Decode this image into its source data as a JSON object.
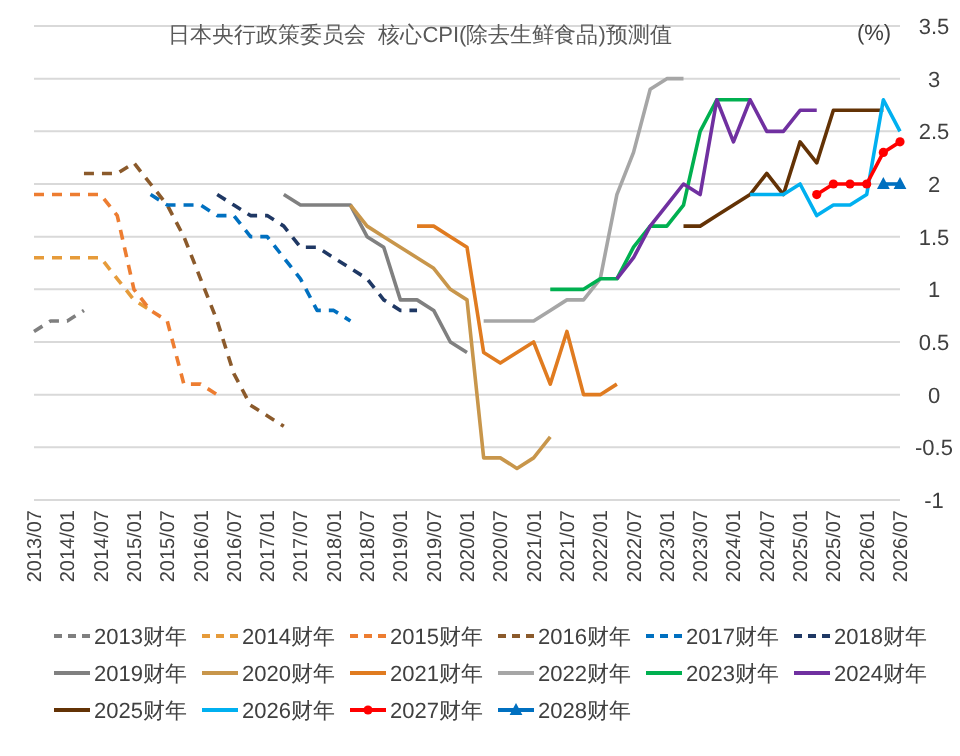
{
  "chart_data": {
    "type": "line",
    "title": "日本央行政策委员会  核心CPI(除去生鲜食品)预测值",
    "ylabel": "(%)",
    "xlim": [
      "2013-07",
      "2026-07"
    ],
    "xticks": [
      {
        "value": "2013-07",
        "label": "2013/07"
      },
      {
        "value": "2014-01",
        "label": "2014/01"
      },
      {
        "value": "2014-07",
        "label": "2014/07"
      },
      {
        "value": "2015-01",
        "label": "2015/01"
      },
      {
        "value": "2015-07",
        "label": "2015/07"
      },
      {
        "value": "2016-01",
        "label": "2016/01"
      },
      {
        "value": "2016-07",
        "label": "2016/07"
      },
      {
        "value": "2017-01",
        "label": "2017/01"
      },
      {
        "value": "2017-07",
        "label": "2017/07"
      },
      {
        "value": "2018-01",
        "label": "2018/01"
      },
      {
        "value": "2018-07",
        "label": "2018/07"
      },
      {
        "value": "2019-01",
        "label": "2019/01"
      },
      {
        "value": "2019-07",
        "label": "2019/07"
      },
      {
        "value": "2020-01",
        "label": "2020/01"
      },
      {
        "value": "2020-07",
        "label": "2020/07"
      },
      {
        "value": "2021-01",
        "label": "2021/01"
      },
      {
        "value": "2021-07",
        "label": "2021/07"
      },
      {
        "value": "2022-01",
        "label": "2022/01"
      },
      {
        "value": "2022-07",
        "label": "2022/07"
      },
      {
        "value": "2023-01",
        "label": "2023/01"
      },
      {
        "value": "2023-07",
        "label": "2023/07"
      },
      {
        "value": "2024-01",
        "label": "2024/01"
      },
      {
        "value": "2024-07",
        "label": "2024/07"
      },
      {
        "value": "2025-01",
        "label": "2025/01"
      },
      {
        "value": "2025-07",
        "label": "2025/07"
      },
      {
        "value": "2026-01",
        "label": "2026/01"
      },
      {
        "value": "2026-07",
        "label": "2026/07"
      }
    ],
    "ylim": [
      -1,
      3.5
    ],
    "yticks": [
      -1,
      -0.5,
      0,
      0.5,
      1,
      1.5,
      2,
      2.5,
      3,
      3.5
    ],
    "grid": "y",
    "legend": "bottom",
    "marker": "none",
    "line_style": "solid",
    "series": [
      {
        "name": "2013财年",
        "color": "#7f7f7f",
        "line_style": "dashed",
        "x": [
          "2013-07",
          "2013-10",
          "2014-01",
          "2014-04"
        ],
        "values": [
          0.6,
          0.7,
          0.7,
          0.8
        ]
      },
      {
        "name": "2014财年",
        "color": "#e69b3a",
        "line_style": "dashed",
        "x": [
          "2013-07",
          "2013-10",
          "2014-01",
          "2014-04",
          "2014-07",
          "2014-10",
          "2015-01",
          "2015-04"
        ],
        "values": [
          1.3,
          1.3,
          1.3,
          1.3,
          1.3,
          1.1,
          0.9,
          0.8
        ]
      },
      {
        "name": "2015财年",
        "color": "#ed7d31",
        "line_style": "dashed",
        "x": [
          "2013-07",
          "2013-10",
          "2014-01",
          "2014-04",
          "2014-07",
          "2014-10",
          "2015-01",
          "2015-04",
          "2015-07",
          "2015-10",
          "2016-01",
          "2016-04"
        ],
        "values": [
          1.9,
          1.9,
          1.9,
          1.9,
          1.9,
          1.7,
          1.0,
          0.8,
          0.7,
          0.1,
          0.1,
          0.0
        ]
      },
      {
        "name": "2016财年",
        "color": "#8b5a2b",
        "line_style": "dashed",
        "x": [
          "2014-04",
          "2014-07",
          "2014-10",
          "2015-01",
          "2015-04",
          "2015-07",
          "2015-10",
          "2016-01",
          "2016-04",
          "2016-07",
          "2016-10",
          "2017-01",
          "2017-04"
        ],
        "values": [
          2.1,
          2.1,
          2.1,
          2.2,
          2.0,
          1.8,
          1.5,
          1.1,
          0.7,
          0.2,
          -0.1,
          -0.2,
          -0.3
        ]
      },
      {
        "name": "2017财年",
        "color": "#0070c0",
        "line_style": "dashed",
        "x": [
          "2015-04",
          "2015-07",
          "2015-10",
          "2016-01",
          "2016-04",
          "2016-07",
          "2016-10",
          "2017-01",
          "2017-04",
          "2017-07",
          "2017-10",
          "2018-01",
          "2018-04"
        ],
        "values": [
          1.9,
          1.8,
          1.8,
          1.8,
          1.7,
          1.7,
          1.5,
          1.5,
          1.3,
          1.1,
          0.8,
          0.8,
          0.7
        ]
      },
      {
        "name": "2018财年",
        "color": "#1f3864",
        "line_style": "dashed",
        "x": [
          "2016-04",
          "2016-07",
          "2016-10",
          "2017-01",
          "2017-04",
          "2017-07",
          "2017-10",
          "2018-01",
          "2018-04",
          "2018-07",
          "2018-10",
          "2019-01",
          "2019-04"
        ],
        "values": [
          1.9,
          1.8,
          1.7,
          1.7,
          1.6,
          1.4,
          1.4,
          1.3,
          1.2,
          1.1,
          0.9,
          0.8,
          0.8
        ]
      },
      {
        "name": "2019财年",
        "color": "#808080",
        "x": [
          "2017-04",
          "2017-07",
          "2017-10",
          "2018-01",
          "2018-04",
          "2018-07",
          "2018-10",
          "2019-01",
          "2019-04",
          "2019-07",
          "2019-10",
          "2020-01"
        ],
        "values": [
          1.9,
          1.8,
          1.8,
          1.8,
          1.8,
          1.5,
          1.4,
          0.9,
          0.9,
          0.8,
          0.5,
          0.4
        ]
      },
      {
        "name": "2020财年",
        "color": "#c8964b",
        "x": [
          "2018-04",
          "2018-07",
          "2018-10",
          "2019-01",
          "2019-04",
          "2019-07",
          "2019-10",
          "2020-01",
          "2020-04",
          "2020-07",
          "2020-10",
          "2021-01",
          "2021-04"
        ],
        "values": [
          1.8,
          1.6,
          1.5,
          1.4,
          1.3,
          1.2,
          1.0,
          0.9,
          -0.6,
          -0.6,
          -0.7,
          -0.6,
          -0.4
        ]
      },
      {
        "name": "2021财年",
        "color": "#e07b20",
        "x": [
          "2019-04",
          "2019-07",
          "2019-10",
          "2020-01",
          "2020-04",
          "2020-07",
          "2020-10",
          "2021-01",
          "2021-04",
          "2021-07",
          "2021-10",
          "2022-01",
          "2022-04"
        ],
        "values": [
          1.6,
          1.6,
          1.5,
          1.4,
          0.4,
          0.3,
          0.4,
          0.5,
          0.1,
          0.6,
          0.0,
          0.0,
          0.1
        ]
      },
      {
        "name": "2022财年",
        "color": "#a6a6a6",
        "x": [
          "2020-04",
          "2020-07",
          "2020-10",
          "2021-01",
          "2021-04",
          "2021-07",
          "2021-10",
          "2022-01",
          "2022-04",
          "2022-07",
          "2022-10",
          "2023-01",
          "2023-04"
        ],
        "values": [
          0.7,
          0.7,
          0.7,
          0.7,
          0.8,
          0.9,
          0.9,
          1.1,
          1.9,
          2.3,
          2.9,
          3.0,
          3.0
        ]
      },
      {
        "name": "2023财年",
        "color": "#00b050",
        "x": [
          "2021-04",
          "2021-07",
          "2021-10",
          "2022-01",
          "2022-04",
          "2022-07",
          "2022-10",
          "2023-01",
          "2023-04",
          "2023-07",
          "2023-10",
          "2024-01",
          "2024-04"
        ],
        "values": [
          1.0,
          1.0,
          1.0,
          1.1,
          1.1,
          1.4,
          1.6,
          1.6,
          1.8,
          2.5,
          2.8,
          2.8,
          2.8
        ]
      },
      {
        "name": "2024财年",
        "color": "#7030a0",
        "x": [
          "2022-04",
          "2022-07",
          "2022-10",
          "2023-01",
          "2023-04",
          "2023-07",
          "2023-10",
          "2024-01",
          "2024-04",
          "2024-07",
          "2024-10",
          "2025-01",
          "2025-04"
        ],
        "values": [
          1.1,
          1.3,
          1.6,
          1.8,
          2.0,
          1.9,
          2.8,
          2.4,
          2.8,
          2.5,
          2.5,
          2.7,
          2.7
        ]
      },
      {
        "name": "2025财年",
        "color": "#633205",
        "x": [
          "2023-04",
          "2023-07",
          "2023-10",
          "2024-01",
          "2024-04",
          "2024-07",
          "2024-10",
          "2025-01",
          "2025-04",
          "2025-07",
          "2025-10",
          "2026-01",
          "2026-04"
        ],
        "values": [
          1.6,
          1.6,
          1.7,
          1.8,
          1.9,
          2.1,
          1.9,
          2.4,
          2.2,
          2.7,
          2.7,
          2.7,
          2.7
        ]
      },
      {
        "name": "2026财年",
        "color": "#00b0f0",
        "x": [
          "2024-04",
          "2024-07",
          "2024-10",
          "2025-01",
          "2025-04",
          "2025-07",
          "2025-10",
          "2026-01",
          "2026-04",
          "2026-07"
        ],
        "values": [
          1.9,
          1.9,
          1.9,
          2.0,
          1.7,
          1.8,
          1.8,
          1.9,
          2.8,
          2.5
        ]
      },
      {
        "name": "2027财年",
        "color": "#ff0000",
        "marker": "circle",
        "x": [
          "2025-04",
          "2025-07",
          "2025-10",
          "2026-01",
          "2026-04",
          "2026-07"
        ],
        "values": [
          1.9,
          2.0,
          2.0,
          2.0,
          2.3,
          2.4
        ]
      },
      {
        "name": "2028财年",
        "color": "#0070c0",
        "marker": "triangle",
        "x": [
          "2026-04",
          "2026-07"
        ],
        "values": [
          2.0,
          2.0
        ]
      }
    ]
  }
}
